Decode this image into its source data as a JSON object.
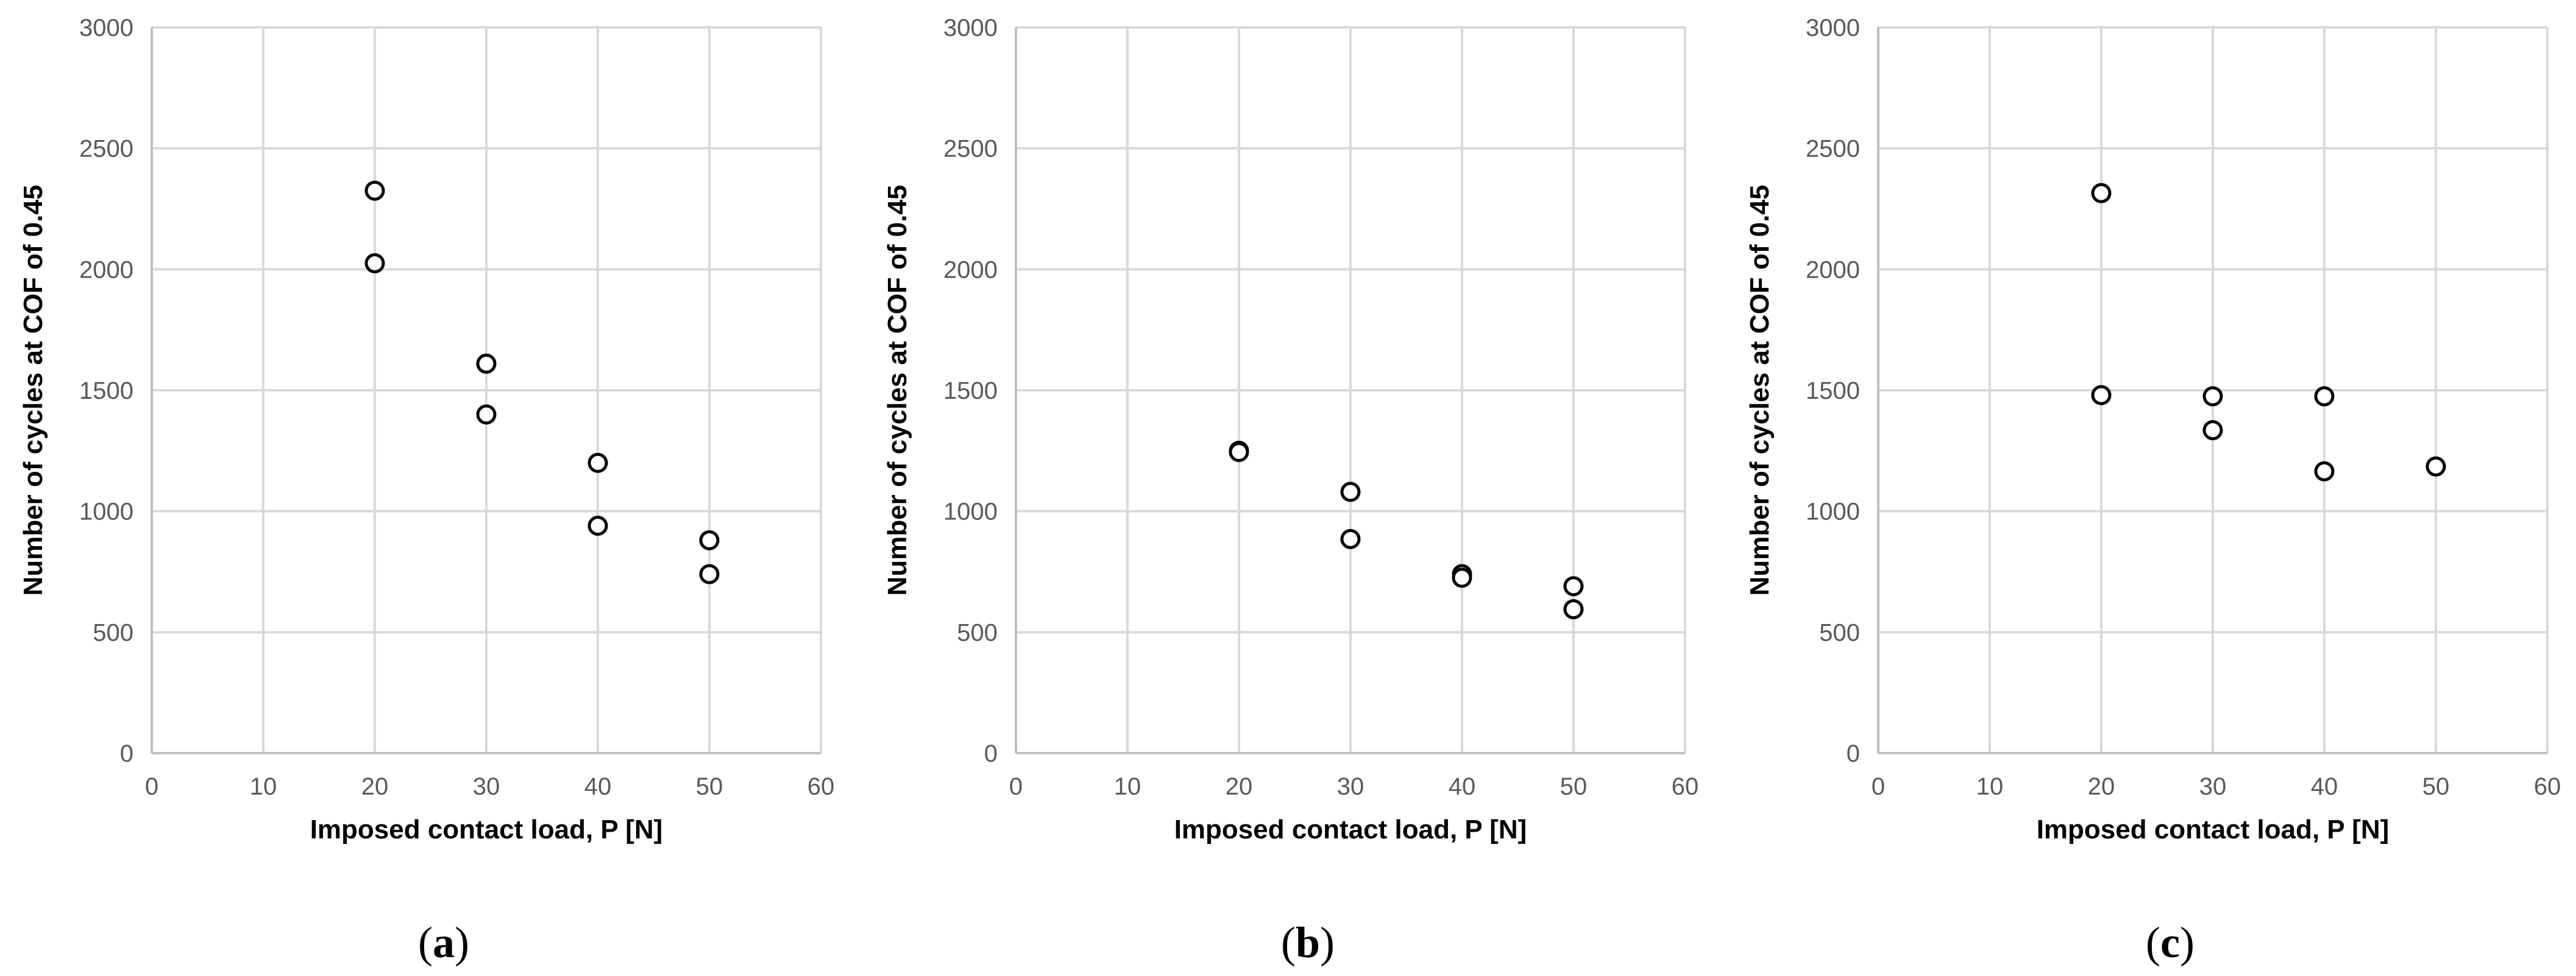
{
  "chart_data": [
    {
      "type": "scatter",
      "panel_label": "a",
      "xlabel": "Imposed contact load, P [N]",
      "ylabel": "Number of cycles at COF of 0.45",
      "xlim": [
        0,
        60
      ],
      "ylim": [
        0,
        3000
      ],
      "xticks": [
        0,
        10,
        20,
        30,
        40,
        50,
        60
      ],
      "yticks": [
        0,
        500,
        1000,
        1500,
        2000,
        2500,
        3000
      ],
      "grid": true,
      "marker": "open-circle",
      "colors": {
        "marker_edge": "#000000",
        "grid": "#d9d9d9"
      },
      "points": [
        {
          "x": 20,
          "y": 2325
        },
        {
          "x": 20,
          "y": 2025
        },
        {
          "x": 30,
          "y": 1610
        },
        {
          "x": 30,
          "y": 1400
        },
        {
          "x": 40,
          "y": 1200
        },
        {
          "x": 40,
          "y": 940
        },
        {
          "x": 50,
          "y": 880
        },
        {
          "x": 50,
          "y": 740
        }
      ]
    },
    {
      "type": "scatter",
      "panel_label": "b",
      "xlabel": "Imposed contact load, P [N]",
      "ylabel": "Number of cycles at COF of 0.45",
      "xlim": [
        0,
        60
      ],
      "ylim": [
        0,
        3000
      ],
      "xticks": [
        0,
        10,
        20,
        30,
        40,
        50,
        60
      ],
      "yticks": [
        0,
        500,
        1000,
        1500,
        2000,
        2500,
        3000
      ],
      "grid": true,
      "marker": "open-circle",
      "colors": {
        "marker_edge": "#000000",
        "grid": "#d9d9d9"
      },
      "points": [
        {
          "x": 20,
          "y": 1250
        },
        {
          "x": 20,
          "y": 1245
        },
        {
          "x": 30,
          "y": 1080
        },
        {
          "x": 30,
          "y": 885
        },
        {
          "x": 40,
          "y": 740
        },
        {
          "x": 40,
          "y": 725
        },
        {
          "x": 50,
          "y": 690
        },
        {
          "x": 50,
          "y": 595
        }
      ]
    },
    {
      "type": "scatter",
      "panel_label": "c",
      "xlabel": "Imposed contact load, P [N]",
      "ylabel": "Number of cycles at COF of 0.45",
      "xlim": [
        0,
        60
      ],
      "ylim": [
        0,
        3000
      ],
      "xticks": [
        0,
        10,
        20,
        30,
        40,
        50,
        60
      ],
      "yticks": [
        0,
        500,
        1000,
        1500,
        2000,
        2500,
        3000
      ],
      "grid": true,
      "marker": "open-circle",
      "colors": {
        "marker_edge": "#000000",
        "grid": "#d9d9d9"
      },
      "points": [
        {
          "x": 20,
          "y": 2315
        },
        {
          "x": 20,
          "y": 1480
        },
        {
          "x": 30,
          "y": 1475
        },
        {
          "x": 30,
          "y": 1335
        },
        {
          "x": 40,
          "y": 1475
        },
        {
          "x": 40,
          "y": 1165
        },
        {
          "x": 50,
          "y": 1185
        }
      ]
    }
  ]
}
